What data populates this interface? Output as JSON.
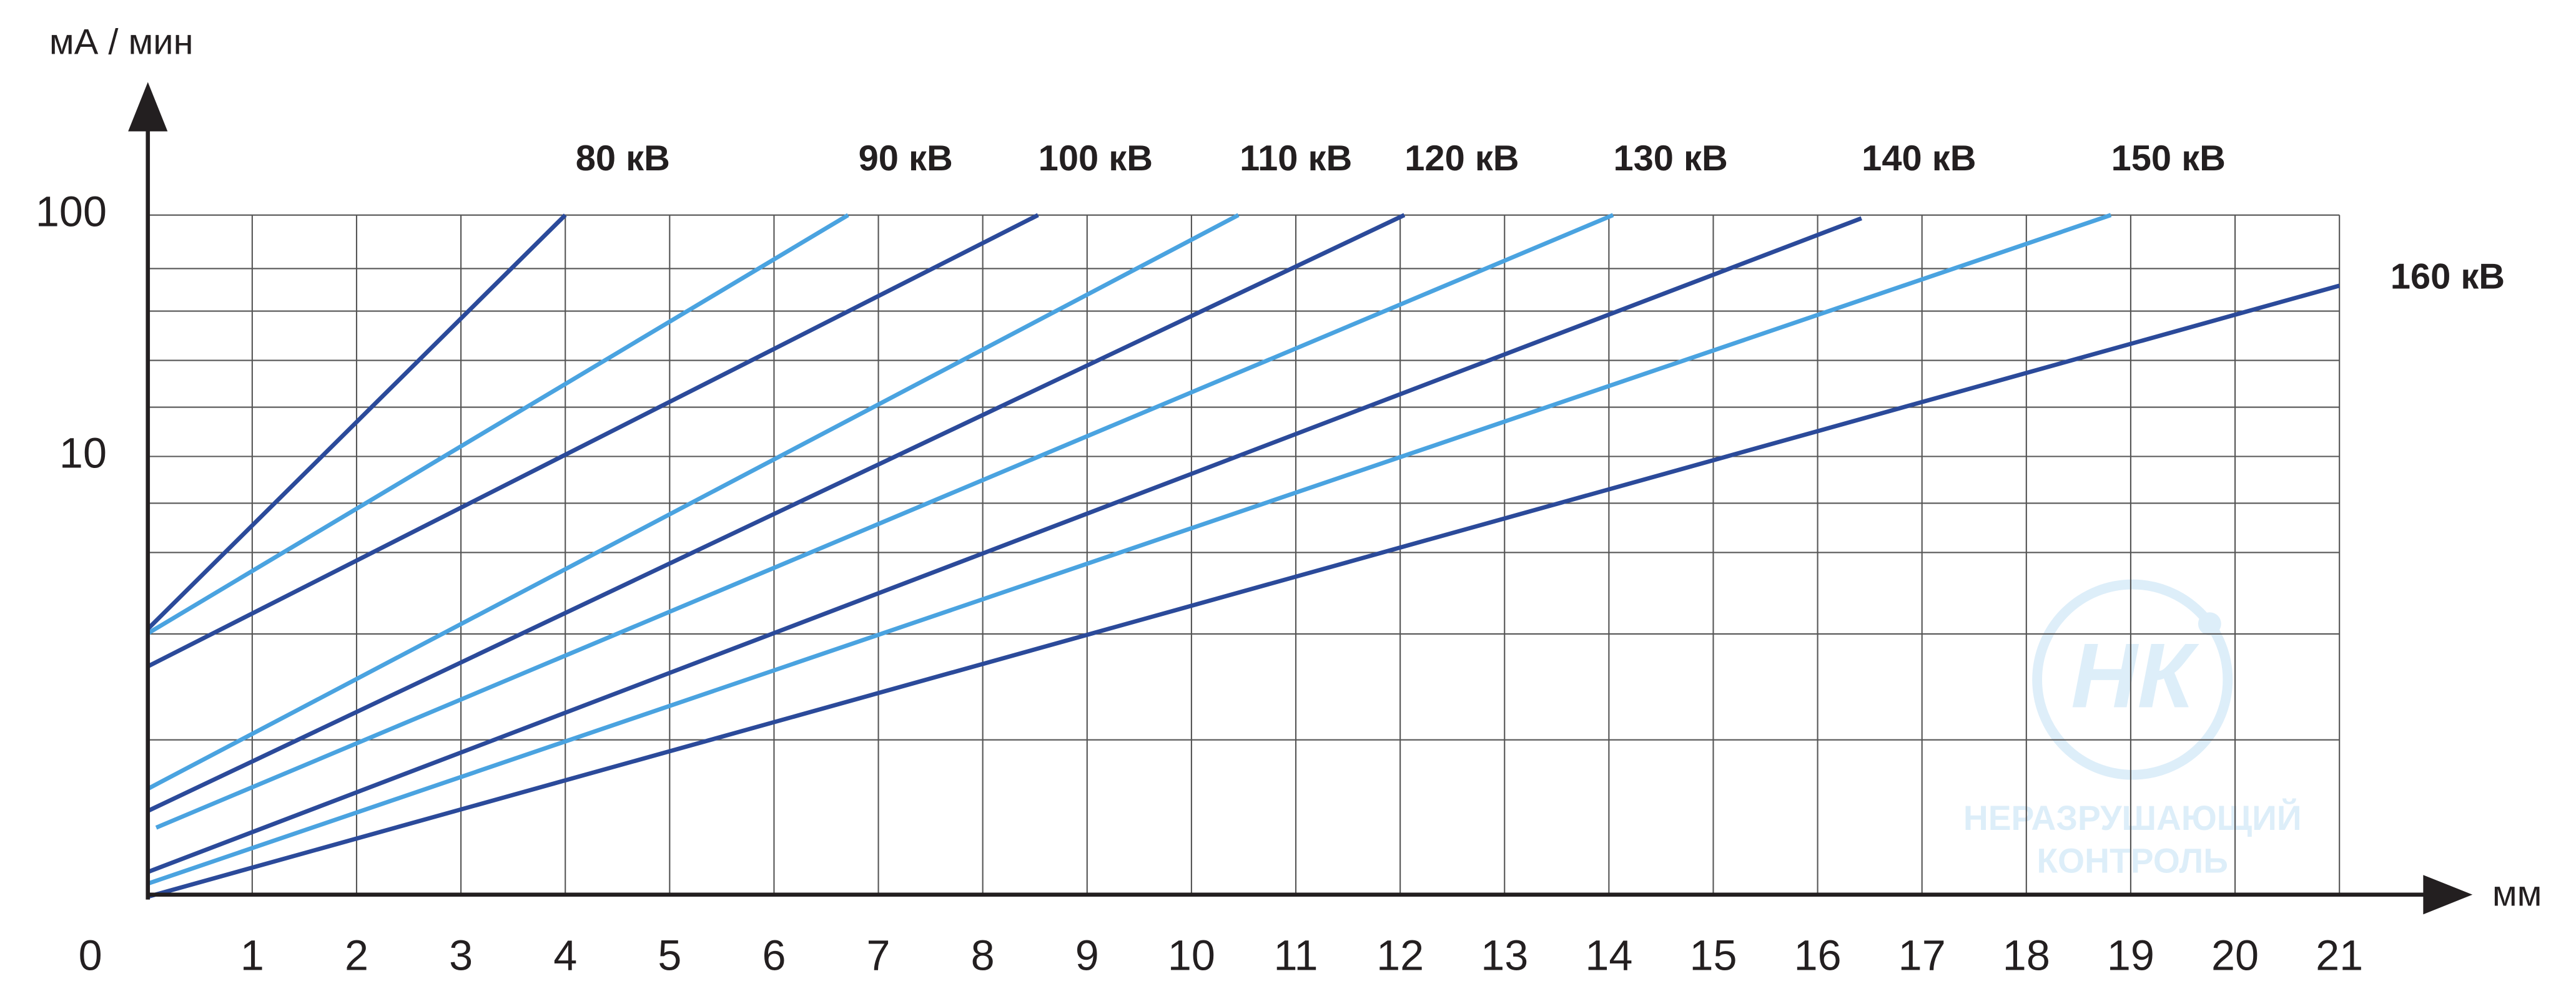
{
  "chart_data": {
    "type": "line",
    "y_label": "мА / мин",
    "x_label": "мм",
    "xlim": [
      0,
      21
    ],
    "xticks": [
      0,
      1,
      2,
      3,
      4,
      5,
      6,
      7,
      8,
      9,
      10,
      11,
      12,
      13,
      14,
      15,
      16,
      17,
      18,
      19,
      20,
      21
    ],
    "ylim": [
      0.153,
      100
    ],
    "yticks": [
      10,
      100
    ],
    "y_log": true,
    "grid": true,
    "minor_grid": [
      60,
      40,
      25,
      16,
      6.4,
      4,
      1.84,
      0.67
    ],
    "series": [
      {
        "name": "80 кВ",
        "color": "#2b4a9a",
        "x": [
          0,
          4.0
        ],
        "values": [
          1.93,
          100
        ]
      },
      {
        "name": "90 кВ",
        "color": "#4aa3e0",
        "x": [
          0,
          6.71
        ],
        "values": [
          1.85,
          100
        ]
      },
      {
        "name": "100 кВ",
        "color": "#2b4a9a",
        "x": [
          0,
          8.53
        ],
        "values": [
          1.35,
          100
        ]
      },
      {
        "name": "110 кВ",
        "color": "#4aa3e0",
        "x": [
          0,
          10.45
        ],
        "values": [
          0.42,
          100
        ]
      },
      {
        "name": "120 кВ",
        "color": "#2b4a9a",
        "x": [
          0,
          12.04
        ],
        "values": [
          0.34,
          100
        ]
      },
      {
        "name": "130 кВ",
        "color": "#4aa3e0",
        "x": [
          0.08,
          14.04
        ],
        "values": [
          0.29,
          100
        ]
      },
      {
        "name": "140 кВ",
        "color": "#2b4a9a",
        "x": [
          0,
          16.42
        ],
        "values": [
          0.19,
          97
        ]
      },
      {
        "name": "150 кВ",
        "color": "#4aa3e0",
        "x": [
          0,
          18.81
        ],
        "values": [
          0.17,
          100
        ]
      },
      {
        "name": "160 кВ",
        "color": "#2b4a9a",
        "x": [
          0,
          21
        ],
        "values": [
          0.15,
          51
        ]
      }
    ],
    "watermark": {
      "logo": "НК",
      "lines": [
        "НЕРАЗРУШАЮЩИЙ",
        "КОНТРОЛЬ"
      ]
    }
  }
}
